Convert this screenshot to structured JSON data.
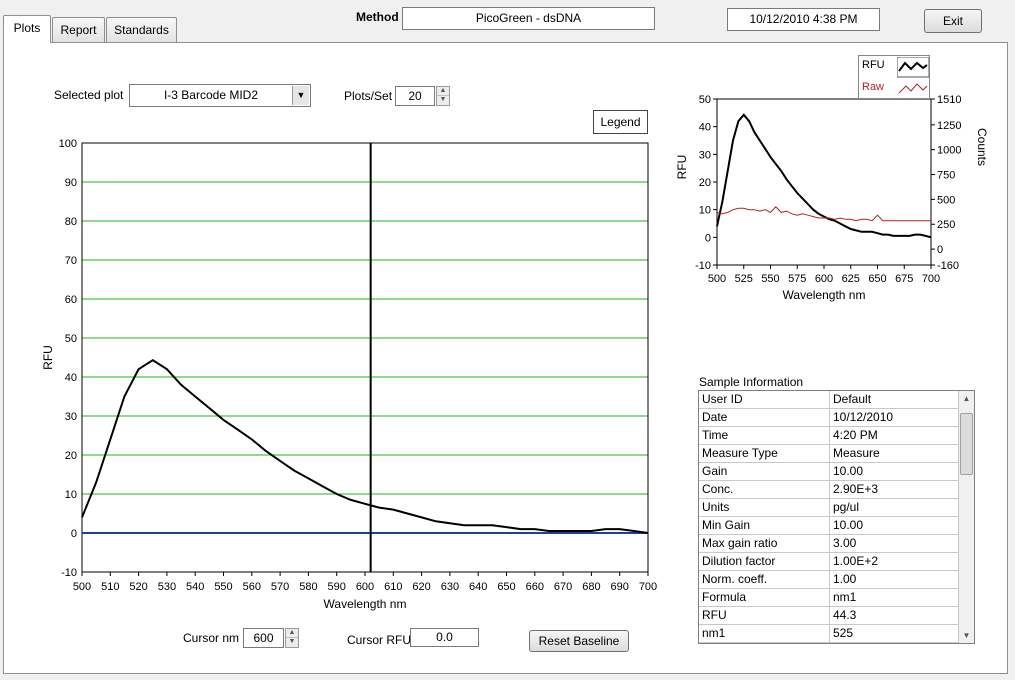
{
  "tabs": [
    {
      "label": "Plots",
      "active": true
    },
    {
      "label": "Report",
      "active": false
    },
    {
      "label": "Standards",
      "active": false
    }
  ],
  "header": {
    "method_label": "Method",
    "method_value": "PicoGreen - dsDNA",
    "datetime": "10/12/2010  4:38 PM",
    "exit_label": "Exit"
  },
  "controls": {
    "selected_plot_label": "Selected plot",
    "selected_plot_value": "I-3 Barcode MID2",
    "plots_per_set_label": "Plots/Set",
    "plots_per_set_value": "20",
    "legend_button": "Legend",
    "cursor_nm_label": "Cursor nm",
    "cursor_nm_value": "600",
    "cursor_rfu_label": "Cursor RFU",
    "cursor_rfu_value": "0.0",
    "reset_baseline": "Reset Baseline"
  },
  "chart_data": [
    {
      "type": "line",
      "xlabel": "Wavelength nm",
      "ylabel": "RFU",
      "xlim": [
        500,
        700
      ],
      "ylim": [
        -10,
        100
      ],
      "x_ticks": [
        "500",
        "510",
        "520",
        "530",
        "540",
        "550",
        "560",
        "570",
        "580",
        "590",
        "600",
        "610",
        "620",
        "630",
        "640",
        "650",
        "660",
        "670",
        "680",
        "690",
        "700"
      ],
      "y_ticks": [
        "-10",
        "0",
        "10",
        "20",
        "30",
        "40",
        "50",
        "60",
        "70",
        "80",
        "90",
        "100"
      ],
      "grid": true,
      "cursor_x": 602,
      "series": [
        {
          "color": "#000000",
          "x": [
            500,
            505,
            510,
            515,
            520,
            525,
            530,
            535,
            540,
            545,
            550,
            555,
            560,
            565,
            570,
            575,
            580,
            585,
            590,
            595,
            600,
            605,
            610,
            615,
            620,
            625,
            630,
            635,
            640,
            645,
            650,
            655,
            660,
            665,
            670,
            675,
            680,
            685,
            690,
            695,
            700
          ],
          "values": [
            4,
            13,
            24,
            35,
            42,
            44.3,
            42,
            38,
            35,
            32,
            29,
            26.5,
            24,
            21,
            18.5,
            16,
            14,
            12,
            10,
            8.5,
            7.5,
            6.5,
            6,
            5,
            4,
            3,
            2.5,
            2,
            2,
            2,
            1.5,
            1,
            1,
            0.5,
            0.5,
            0.5,
            0.5,
            1,
            1,
            0.5,
            0
          ]
        }
      ],
      "baseline": {
        "value": 0,
        "color": "#1e3f9e"
      }
    },
    {
      "type": "line",
      "xlabel": "Wavelength  nm",
      "ylabel": "RFU",
      "y2label": "Counts",
      "xlim": [
        500,
        700
      ],
      "ylim": [
        -10,
        50
      ],
      "x_ticks": [
        "500",
        "525",
        "550",
        "575",
        "600",
        "625",
        "650",
        "675",
        "700"
      ],
      "y_ticks": [
        "-10",
        "0",
        "10",
        "20",
        "30",
        "40",
        "50"
      ],
      "y2_ticks": [
        "-160",
        "0",
        "250",
        "500",
        "750",
        "1000",
        "1250",
        "1510"
      ],
      "legend": [
        "RFU",
        "Raw"
      ],
      "legend_position": "top-right",
      "series": [
        {
          "name": "RFU",
          "color": "#000000",
          "x": [
            500,
            505,
            510,
            515,
            520,
            525,
            530,
            535,
            540,
            545,
            550,
            555,
            560,
            565,
            570,
            575,
            580,
            585,
            590,
            595,
            600,
            605,
            610,
            615,
            620,
            625,
            630,
            635,
            640,
            645,
            650,
            655,
            660,
            665,
            670,
            675,
            680,
            685,
            690,
            695,
            700
          ],
          "values": [
            4,
            13,
            24,
            35,
            42,
            44.3,
            42,
            38,
            35,
            32,
            29,
            26.5,
            24,
            21,
            18.5,
            16,
            14,
            12,
            10,
            8.5,
            7.5,
            6.5,
            6,
            5,
            4,
            3,
            2.5,
            2,
            2,
            2,
            1.5,
            1,
            1,
            0.5,
            0.5,
            0.5,
            0.5,
            1,
            1,
            0.5,
            0
          ]
        },
        {
          "name": "Raw",
          "color": "#b22222",
          "x": [
            500,
            505,
            510,
            515,
            520,
            525,
            530,
            535,
            540,
            545,
            550,
            555,
            560,
            565,
            570,
            575,
            580,
            585,
            590,
            595,
            600,
            605,
            610,
            615,
            620,
            625,
            630,
            635,
            640,
            645,
            650,
            655,
            660,
            665,
            670,
            675,
            680,
            685,
            690,
            695,
            700
          ],
          "values": [
            9,
            8.5,
            9,
            10,
            10.5,
            10.5,
            10,
            10,
            9.5,
            10,
            9,
            11,
            9,
            9.5,
            8.5,
            8,
            8.5,
            8,
            7.5,
            7,
            7,
            7,
            6.5,
            7,
            6.5,
            6.5,
            6,
            6.5,
            6.5,
            6,
            8,
            6,
            6,
            6,
            6,
            6,
            6,
            6,
            6,
            6,
            6
          ]
        }
      ]
    }
  ],
  "sample_info": {
    "title": "Sample Information",
    "rows": [
      {
        "key": "User ID",
        "value": "Default"
      },
      {
        "key": "Date",
        "value": "10/12/2010"
      },
      {
        "key": "Time",
        "value": "4:20 PM"
      },
      {
        "key": "Measure Type",
        "value": "Measure"
      },
      {
        "key": "Gain",
        "value": "10.00"
      },
      {
        "key": "Conc.",
        "value": "2.90E+3"
      },
      {
        "key": "Units",
        "value": "pg/ul"
      },
      {
        "key": "Min Gain",
        "value": "10.00"
      },
      {
        "key": "Max gain ratio",
        "value": "3.00"
      },
      {
        "key": "Dilution factor",
        "value": "1.00E+2"
      },
      {
        "key": "Norm. coeff.",
        "value": "1.00"
      },
      {
        "key": "Formula",
        "value": "nm1"
      },
      {
        "key": "RFU",
        "value": "44.3"
      },
      {
        "key": "nm1",
        "value": "525"
      }
    ]
  },
  "icons": {
    "dropdown": "chevron-down-icon",
    "spinner": "spin-arrows-icon",
    "scroll_up": "scroll-up-icon",
    "scroll_down": "scroll-down-icon"
  }
}
